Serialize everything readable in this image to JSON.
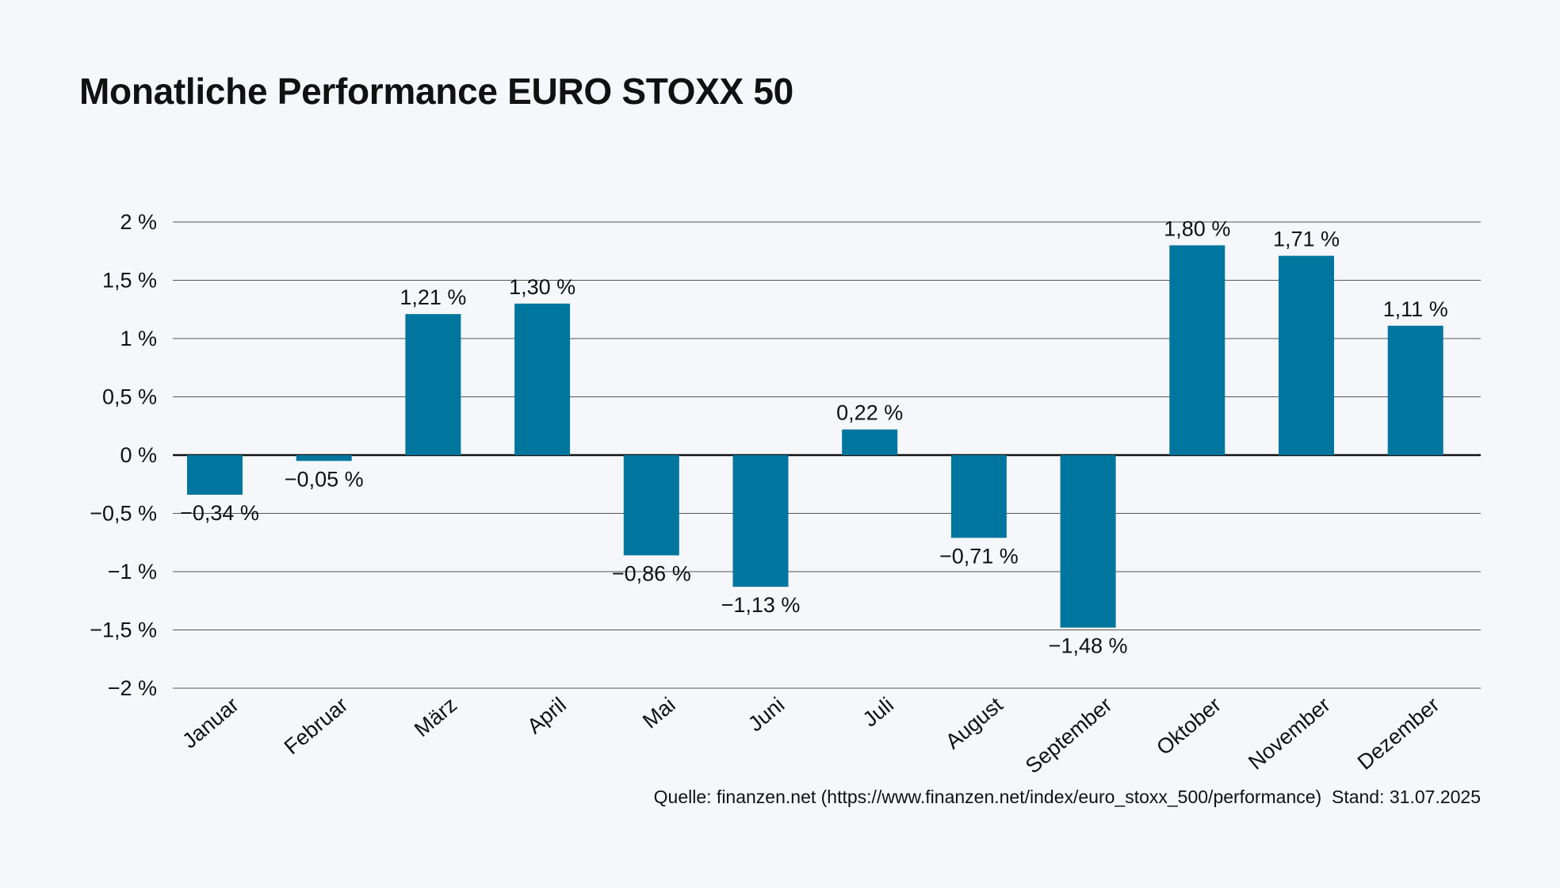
{
  "chart_data": {
    "type": "bar",
    "title": "Monatliche Performance EURO STOXX 50",
    "categories": [
      "Januar",
      "Februar",
      "März",
      "April",
      "Mai",
      "Juni",
      "Juli",
      "August",
      "September",
      "Oktober",
      "November",
      "Dezember"
    ],
    "values": [
      -0.34,
      -0.05,
      1.21,
      1.3,
      -0.86,
      -1.13,
      0.22,
      -0.71,
      -1.48,
      1.8,
      1.71,
      1.11
    ],
    "data_labels": [
      "−0,34 %",
      "−0,05 %",
      "1,21 %",
      "1,30 %",
      "−0,86 %",
      "−1,13 %",
      "0,22 %",
      "−0,71 %",
      "−1,48 %",
      "1,80 %",
      "1,71 %",
      "1,11 %"
    ],
    "ylim": [
      -2,
      2
    ],
    "yticks": [
      2,
      1.5,
      1,
      0.5,
      0,
      -0.5,
      -1,
      -1.5,
      -2
    ],
    "ytick_labels": [
      "2 %",
      "1,5 %",
      "1 %",
      "0,5 %",
      "0 %",
      "−0,5 %",
      "−1 %",
      "−1,5 %",
      "−2 %"
    ],
    "grid": true,
    "legend": "none",
    "bar_color": "#00769e",
    "xlabel": "",
    "ylabel": ""
  },
  "source": "Quelle: finanzen.net (https://www.finanzen.net/index/euro_stoxx_500/performance)  Stand: 31.07.2025"
}
